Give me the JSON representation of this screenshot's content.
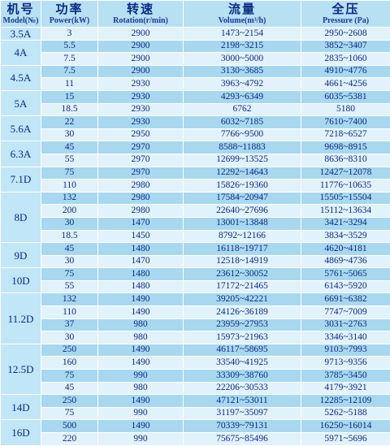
{
  "headers": [
    {
      "zh": "机号",
      "en": "Model(№)"
    },
    {
      "zh": "功率",
      "en": "Power(kW)"
    },
    {
      "zh": "转速",
      "en": "Rotation(r/min)"
    },
    {
      "zh": "流量",
      "en": "Volume(m³/h)"
    },
    {
      "zh": "全压",
      "en": "Pressure (Pa)"
    }
  ],
  "groups": [
    {
      "model": "3.5A",
      "rows": [
        {
          "power": "3",
          "rotation": "2900",
          "volume": "1473~2154",
          "pressure": "2950~2608"
        }
      ]
    },
    {
      "model": "4A",
      "rows": [
        {
          "power": "5.5",
          "rotation": "2900",
          "volume": "2198~3215",
          "pressure": "3852~3407"
        },
        {
          "power": "7.5",
          "rotation": "2900",
          "volume": "3000~5000",
          "pressure": "2835~1060"
        }
      ]
    },
    {
      "model": "4.5A",
      "rows": [
        {
          "power": "7.5",
          "rotation": "2900",
          "volume": "3130~3685",
          "pressure": "4910~4776"
        },
        {
          "power": "11",
          "rotation": "2930",
          "volume": "3963~4792",
          "pressure": "4661~4256"
        }
      ]
    },
    {
      "model": "5A",
      "rows": [
        {
          "power": "15",
          "rotation": "2930",
          "volume": "4293~6349",
          "pressure": "6035~5381"
        },
        {
          "power": "18.5",
          "rotation": "2930",
          "volume": "6762",
          "pressure": "5180"
        }
      ]
    },
    {
      "model": "5.6A",
      "rows": [
        {
          "power": "22",
          "rotation": "2930",
          "volume": "6032~7185",
          "pressure": "7610~7400"
        },
        {
          "power": "30",
          "rotation": "2950",
          "volume": "7766~9500",
          "pressure": "7218~6527"
        }
      ]
    },
    {
      "model": "6.3A",
      "rows": [
        {
          "power": "45",
          "rotation": "2970",
          "volume": "8588~11883",
          "pressure": "9698~8915"
        },
        {
          "power": "55",
          "rotation": "2970",
          "volume": "12699~13525",
          "pressure": "8636~8310"
        }
      ]
    },
    {
      "model": "7.1D",
      "rows": [
        {
          "power": "75",
          "rotation": "2970",
          "volume": "12292~14643",
          "pressure": "12427~12078"
        },
        {
          "power": "110",
          "rotation": "2980",
          "volume": "15826~19360",
          "pressure": "11776~10635"
        }
      ]
    },
    {
      "model": "8D",
      "rows": [
        {
          "power": "132",
          "rotation": "2980",
          "volume": "17584~20947",
          "pressure": "15505~15504"
        },
        {
          "power": "200",
          "rotation": "2980",
          "volume": "22640~27696",
          "pressure": "15112~13634"
        },
        {
          "power": "30",
          "rotation": "1470",
          "volume": "13001~13848",
          "pressure": "3421~3294"
        },
        {
          "power": "18.5",
          "rotation": "1450",
          "volume": "8792~12166",
          "pressure": "3834~3529"
        }
      ]
    },
    {
      "model": "9D",
      "rows": [
        {
          "power": "45",
          "rotation": "1480",
          "volume": "16118~19717",
          "pressure": "4620~4181"
        },
        {
          "power": "30",
          "rotation": "1470",
          "volume": "12518~14919",
          "pressure": "4869~4736"
        }
      ]
    },
    {
      "model": "10D",
      "rows": [
        {
          "power": "75",
          "rotation": "1480",
          "volume": "23612~30052",
          "pressure": "5761~5065"
        },
        {
          "power": "55",
          "rotation": "1480",
          "volume": "17172~21465",
          "pressure": "6143~5920"
        }
      ]
    },
    {
      "model": "11.2D",
      "rows": [
        {
          "power": "132",
          "rotation": "1490",
          "volume": "39205~42221",
          "pressure": "6691~6382"
        },
        {
          "power": "110",
          "rotation": "1490",
          "volume": "24126~36189",
          "pressure": "7747~7009"
        },
        {
          "power": "37",
          "rotation": "980",
          "volume": "23959~27953",
          "pressure": "3031~2763"
        },
        {
          "power": "30",
          "rotation": "980",
          "volume": "15973~21963",
          "pressure": "3346~3140"
        }
      ]
    },
    {
      "model": "12.5D",
      "rows": [
        {
          "power": "250",
          "rotation": "1490",
          "volume": "46117~58695",
          "pressure": "9103~7993"
        },
        {
          "power": "160",
          "rotation": "1490",
          "volume": "33540~41925",
          "pressure": "9713~9356"
        },
        {
          "power": "75",
          "rotation": "990",
          "volume": "33309~38760",
          "pressure": "3785~3450"
        },
        {
          "power": "45",
          "rotation": "980",
          "volume": "22206~30533",
          "pressure": "4179~3921"
        }
      ]
    },
    {
      "model": "14D",
      "rows": [
        {
          "power": "250",
          "rotation": "1490",
          "volume": "47121~53011",
          "pressure": "12285~12109"
        },
        {
          "power": "75",
          "rotation": "990",
          "volume": "31197~35097",
          "pressure": "5262~5188"
        }
      ]
    },
    {
      "model": "16D",
      "rows": [
        {
          "power": "500",
          "rotation": "1490",
          "volume": "70339~79131",
          "pressure": "16250~16014"
        },
        {
          "power": "220",
          "rotation": "990",
          "volume": "75675~85496",
          "pressure": "5971~5696"
        }
      ]
    }
  ],
  "colors": {
    "header": "#b7e0f3",
    "row_light": "#e1f2fb",
    "row_dark": "#a7d8ef",
    "text": "#0c2a84"
  }
}
